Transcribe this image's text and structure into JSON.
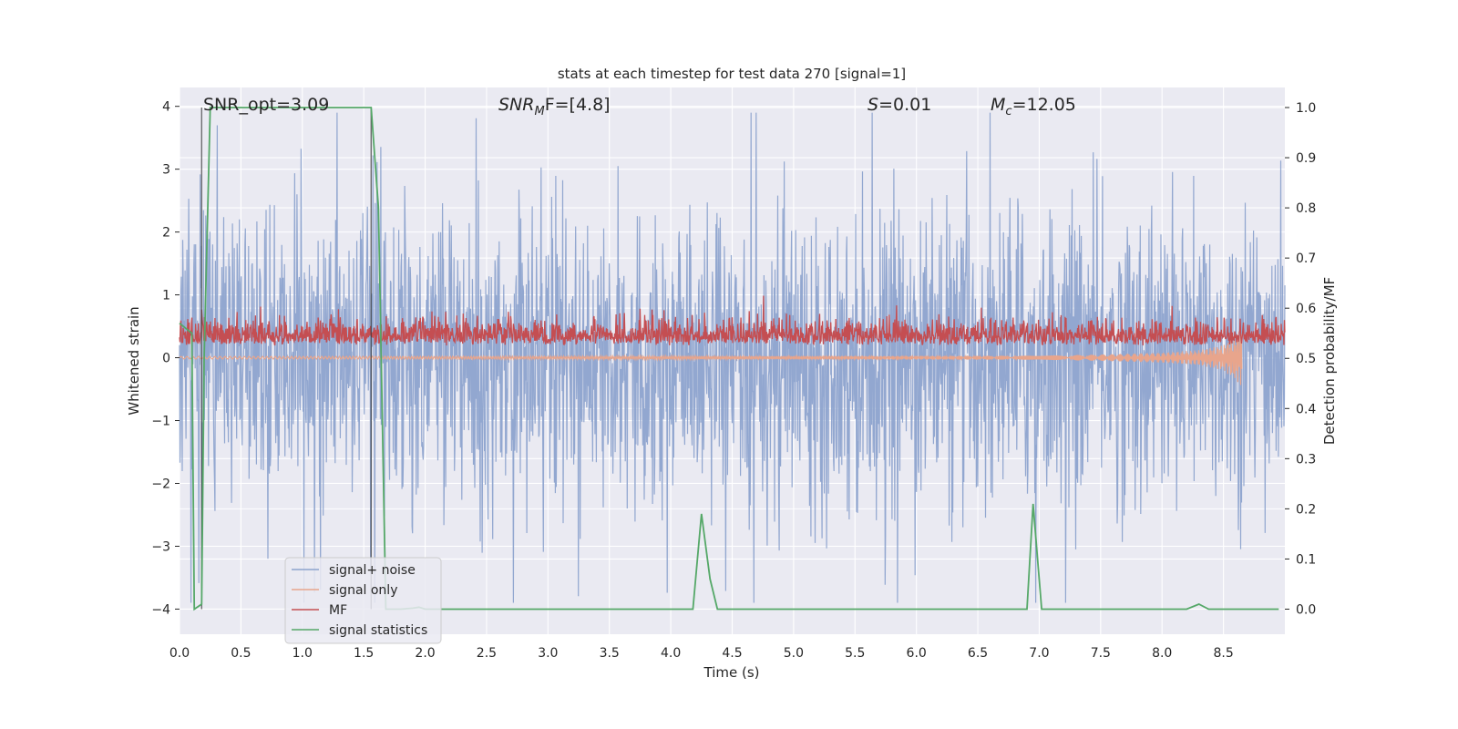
{
  "chart_data": {
    "type": "line",
    "title": "stats at each timestep for test data 270 [signal=1]",
    "xlabel": "Time (s)",
    "ylabel_left": "Whitened strain",
    "ylabel_right": "Detection probability/MF",
    "xlim": [
      0,
      9.0
    ],
    "ylim_left": [
      -4.4,
      4.3
    ],
    "ylim_right": [
      -0.05,
      1.04
    ],
    "x_ticks": [
      0.0,
      0.5,
      1.0,
      1.5,
      2.0,
      2.5,
      3.0,
      3.5,
      4.0,
      4.5,
      5.0,
      5.5,
      6.0,
      6.5,
      7.0,
      7.5,
      8.0,
      8.5
    ],
    "x_tick_labels": [
      "0.0",
      "0.5",
      "1.0",
      "1.5",
      "2.0",
      "2.5",
      "3.0",
      "3.5",
      "4.0",
      "4.5",
      "5.0",
      "5.5",
      "6.0",
      "6.5",
      "7.0",
      "7.5",
      "8.0",
      "8.5"
    ],
    "y_ticks_left": [
      -4,
      -3,
      -2,
      -1,
      0,
      1,
      2,
      3,
      4
    ],
    "y_tick_labels_left": [
      "−4",
      "−3",
      "−2",
      "−1",
      "0",
      "1",
      "2",
      "3",
      "4"
    ],
    "y_ticks_right": [
      0.0,
      0.1,
      0.2,
      0.3,
      0.4,
      0.5,
      0.6,
      0.7,
      0.8,
      0.9,
      1.0
    ],
    "y_tick_labels_right": [
      "0.0",
      "0.1",
      "0.2",
      "0.3",
      "0.4",
      "0.5",
      "0.6",
      "0.7",
      "0.8",
      "0.9",
      "1.0"
    ],
    "grid": true,
    "legend_position": "lower-left",
    "annotations": {
      "snr_opt": "SNR_opt=3.09",
      "snr_mf_main": "SNR",
      "snr_mf_sub": "M",
      "snr_mf_rest": "F=[4.8]",
      "s_main": "S",
      "s_rest": "=0.01",
      "mc_main": "M",
      "mc_sub": "c",
      "mc_rest": "=12.05"
    },
    "vertical_lines_x": [
      0.18,
      1.56
    ],
    "series": [
      {
        "name": "signal+ noise",
        "color": "#8da3cd",
        "axis": "left",
        "description_values": "whitened noise, envelope approx 1.7 amplitude with spikes up to about 3.9 and down to about -3.9 over 0 to 9 s"
      },
      {
        "name": "signal only",
        "color": "#e8a58c",
        "axis": "left",
        "x": [
          0.0,
          7.0,
          7.5,
          8.0,
          8.3,
          8.5,
          8.65
        ],
        "envelope": [
          0.02,
          0.03,
          0.05,
          0.08,
          0.12,
          0.2,
          0.45
        ]
      },
      {
        "name": "MF",
        "color": "#c44e52",
        "axis": "right",
        "description_values": "noisy matched-filter output between about 0.50 and 0.64 on the right axis"
      },
      {
        "name": "signal statistics",
        "color": "#55a868",
        "axis": "right",
        "x": [
          0.0,
          0.05,
          0.1,
          0.12,
          0.18,
          0.2,
          0.25,
          0.3,
          1.0,
          1.56,
          1.62,
          1.68,
          1.75,
          1.8,
          1.9,
          1.95,
          2.0,
          4.18,
          4.25,
          4.32,
          4.38,
          5.0,
          6.9,
          6.95,
          7.02,
          7.08,
          8.2,
          8.3,
          8.38,
          8.95
        ],
        "y": [
          0.57,
          0.56,
          0.55,
          0.0,
          0.01,
          0.5,
          1.0,
          1.0,
          1.0,
          1.0,
          0.8,
          0.0,
          0.0,
          0.0,
          0.002,
          0.004,
          0.0,
          0.0,
          0.19,
          0.06,
          0.0,
          0.0,
          0.0,
          0.21,
          0.0,
          0.0,
          0.0,
          0.01,
          0.0,
          0.0
        ]
      }
    ]
  }
}
